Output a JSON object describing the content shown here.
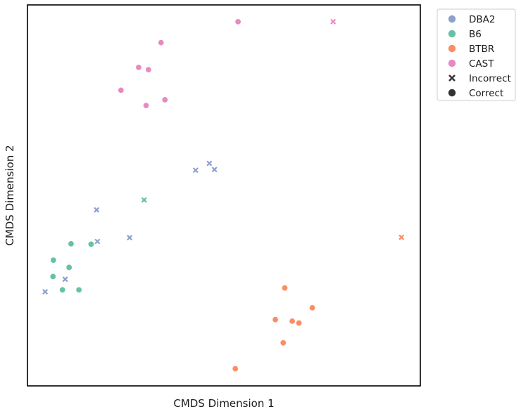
{
  "chart_data": {
    "type": "scatter",
    "title": "",
    "xlabel": "CMDS Dimension 1",
    "ylabel": "CMDS Dimension 2",
    "xlim": [
      0,
      100
    ],
    "ylim": [
      0,
      100
    ],
    "ticks_shown": false,
    "grid": false,
    "legend_position": "outside-top-right",
    "strain_colors": {
      "DBA2": "#8da0cb",
      "B6": "#66c2a5",
      "BTBR": "#fc8d62",
      "CAST": "#e78ac3"
    },
    "marker_legend": [
      {
        "label": "Incorrect",
        "marker": "x"
      },
      {
        "label": "Correct",
        "marker": "o"
      }
    ],
    "legend_marker_color": "#333333",
    "series": [
      {
        "name": "DBA2",
        "marker": "x",
        "status": "Incorrect",
        "points": [
          [
            4.5,
            24.7
          ],
          [
            9.6,
            28.0
          ],
          [
            17.6,
            46.2
          ],
          [
            17.8,
            37.9
          ],
          [
            26.0,
            38.9
          ],
          [
            42.8,
            56.6
          ],
          [
            46.3,
            58.4
          ],
          [
            47.6,
            56.8
          ]
        ]
      },
      {
        "name": "B6",
        "marker": "x",
        "status": "Incorrect",
        "points": [
          [
            29.7,
            48.8
          ]
        ]
      },
      {
        "name": "B6",
        "marker": "o",
        "status": "Correct",
        "points": [
          [
            6.6,
            33.0
          ],
          [
            6.5,
            28.7
          ],
          [
            8.9,
            25.2
          ],
          [
            13.1,
            25.2
          ],
          [
            10.6,
            31.1
          ],
          [
            11.1,
            37.3
          ],
          [
            16.2,
            37.2
          ]
        ]
      },
      {
        "name": "BTBR",
        "marker": "x",
        "status": "Incorrect",
        "points": [
          [
            95.2,
            39.0
          ]
        ]
      },
      {
        "name": "BTBR",
        "marker": "o",
        "status": "Correct",
        "points": [
          [
            65.5,
            25.7
          ],
          [
            72.5,
            20.5
          ],
          [
            67.4,
            17.0
          ],
          [
            63.1,
            17.4
          ],
          [
            69.1,
            16.5
          ],
          [
            65.1,
            11.3
          ],
          [
            52.9,
            4.5
          ]
        ]
      },
      {
        "name": "CAST",
        "marker": "x",
        "status": "Incorrect",
        "points": [
          [
            77.8,
            95.6
          ]
        ]
      },
      {
        "name": "CAST",
        "marker": "o",
        "status": "Correct",
        "points": [
          [
            53.6,
            95.6
          ],
          [
            34.0,
            90.1
          ],
          [
            28.3,
            83.6
          ],
          [
            30.8,
            83.0
          ],
          [
            23.8,
            77.6
          ],
          [
            35.0,
            75.1
          ],
          [
            30.2,
            73.6
          ]
        ]
      }
    ]
  },
  "legend": {
    "items": [
      {
        "label": "DBA2",
        "marker": "o",
        "color": "#8da0cb"
      },
      {
        "label": "B6",
        "marker": "o",
        "color": "#66c2a5"
      },
      {
        "label": "BTBR",
        "marker": "o",
        "color": "#fc8d62"
      },
      {
        "label": "CAST",
        "marker": "o",
        "color": "#e78ac3"
      },
      {
        "label": "Incorrect",
        "marker": "x",
        "color": "#333333"
      },
      {
        "label": "Correct",
        "marker": "o",
        "color": "#333333"
      }
    ]
  }
}
